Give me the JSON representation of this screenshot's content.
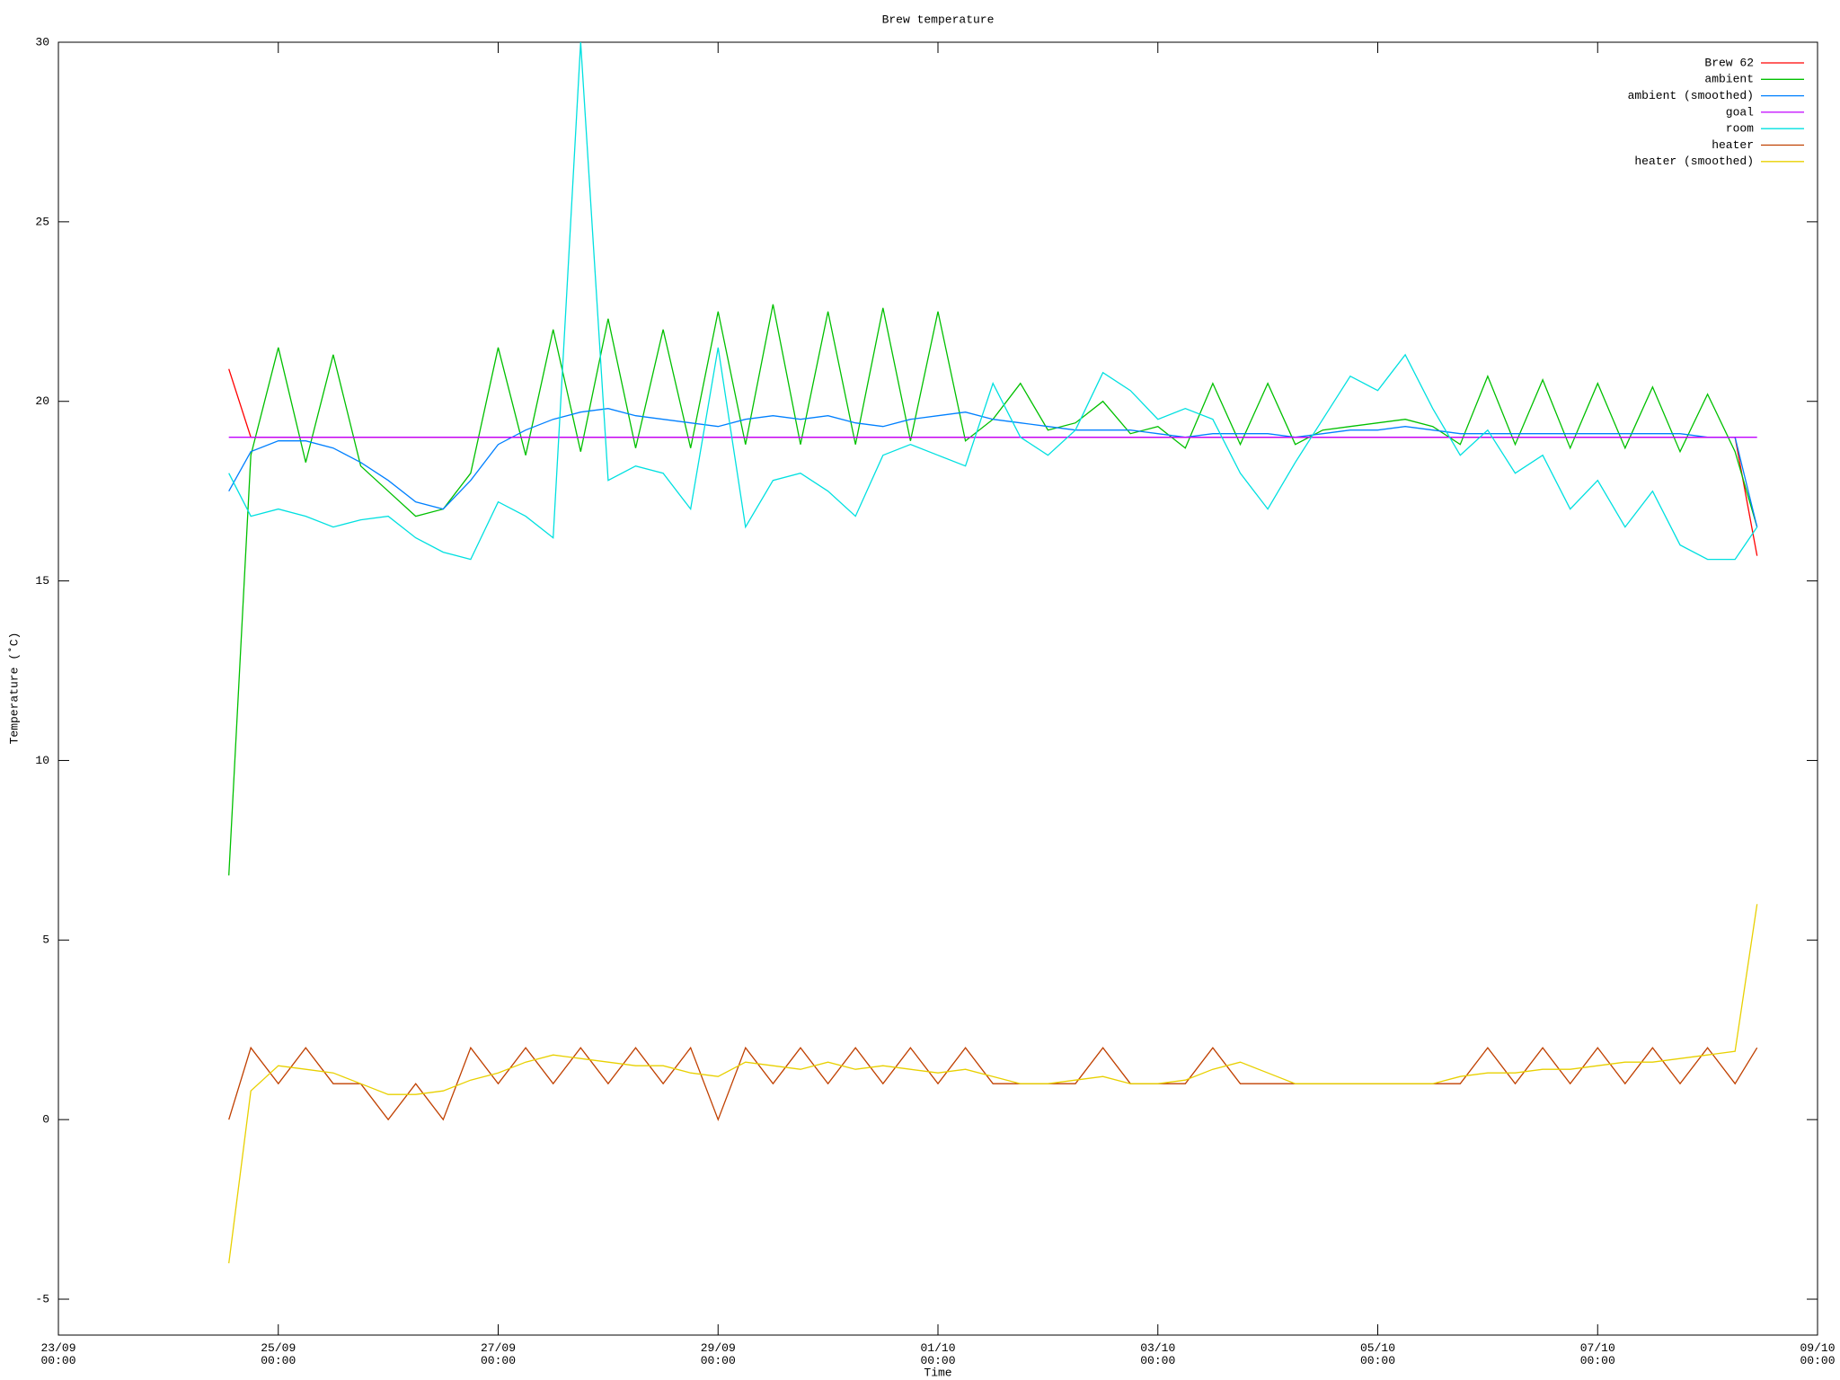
{
  "chart_data": {
    "type": "line",
    "title": "Brew temperature",
    "x_label": "Time",
    "y_label": "Temperature (˚C)",
    "x": [
      1.55,
      1.75,
      2.0,
      2.25,
      2.5,
      2.75,
      3.0,
      3.25,
      3.5,
      3.75,
      4.0,
      4.25,
      4.5,
      4.75,
      5.0,
      5.25,
      5.5,
      5.75,
      6.0,
      6.25,
      6.5,
      6.75,
      7.0,
      7.25,
      7.5,
      7.75,
      8.0,
      8.25,
      8.5,
      8.75,
      9.0,
      9.25,
      9.5,
      9.75,
      10.0,
      10.25,
      10.5,
      10.75,
      11.0,
      11.25,
      11.5,
      11.75,
      12.0,
      12.25,
      12.5,
      12.75,
      13.0,
      13.25,
      13.5,
      13.75,
      14.0,
      14.25,
      14.5,
      14.75,
      15.0,
      15.25,
      15.45
    ],
    "series": [
      {
        "name": "Brew 62",
        "color": "#ff0000",
        "values": [
          20.9,
          19,
          19,
          19,
          19,
          19,
          19,
          19,
          19,
          19,
          19,
          19,
          19,
          19,
          19,
          19,
          19,
          19,
          19,
          19,
          19,
          19,
          19,
          19,
          19,
          19,
          19,
          19,
          19,
          19,
          19,
          19,
          19,
          19,
          19,
          19,
          19,
          19,
          19,
          19,
          19,
          19,
          19,
          19,
          19,
          19,
          19,
          19,
          19,
          19,
          19,
          19,
          19,
          19,
          19,
          19,
          15.7
        ]
      },
      {
        "name": "ambient",
        "color": "#00c000",
        "values": [
          6.8,
          18.5,
          21.5,
          18.3,
          21.3,
          18.2,
          17.5,
          16.8,
          17.0,
          18.0,
          21.5,
          18.5,
          22.0,
          18.6,
          22.3,
          18.7,
          22.0,
          18.7,
          22.5,
          18.8,
          22.7,
          18.8,
          22.5,
          18.8,
          22.6,
          18.9,
          22.5,
          18.9,
          19.5,
          20.5,
          19.2,
          19.4,
          20.0,
          19.1,
          19.3,
          18.7,
          20.5,
          18.8,
          20.5,
          18.8,
          19.2,
          19.3,
          19.4,
          19.5,
          19.3,
          18.8,
          20.7,
          18.8,
          20.6,
          18.7,
          20.5,
          18.7,
          20.4,
          18.6,
          20.2,
          18.6,
          16.5
        ]
      },
      {
        "name": "ambient (smoothed)",
        "color": "#0080ff",
        "values": [
          17.5,
          18.6,
          18.9,
          18.9,
          18.7,
          18.3,
          17.8,
          17.2,
          17.0,
          17.8,
          18.8,
          19.2,
          19.5,
          19.7,
          19.8,
          19.6,
          19.5,
          19.4,
          19.3,
          19.5,
          19.6,
          19.5,
          19.6,
          19.4,
          19.3,
          19.5,
          19.6,
          19.7,
          19.5,
          19.4,
          19.3,
          19.2,
          19.2,
          19.2,
          19.1,
          19.0,
          19.1,
          19.1,
          19.1,
          19.0,
          19.1,
          19.2,
          19.2,
          19.3,
          19.2,
          19.1,
          19.1,
          19.1,
          19.1,
          19.1,
          19.1,
          19.1,
          19.1,
          19.1,
          19.0,
          19.0,
          16.5
        ]
      },
      {
        "name": "goal",
        "color": "#c000ff",
        "values": [
          19,
          19,
          19,
          19,
          19,
          19,
          19,
          19,
          19,
          19,
          19,
          19,
          19,
          19,
          19,
          19,
          19,
          19,
          19,
          19,
          19,
          19,
          19,
          19,
          19,
          19,
          19,
          19,
          19,
          19,
          19,
          19,
          19,
          19,
          19,
          19,
          19,
          19,
          19,
          19,
          19,
          19,
          19,
          19,
          19,
          19,
          19,
          19,
          19,
          19,
          19,
          19,
          19,
          19,
          19,
          19,
          19
        ]
      },
      {
        "name": "room",
        "color": "#00e0e0",
        "values": [
          18,
          16.8,
          17.0,
          16.8,
          16.5,
          16.7,
          16.8,
          16.2,
          15.8,
          15.6,
          17.2,
          16.8,
          16.2,
          30,
          17.8,
          18.2,
          18.0,
          17.0,
          21.5,
          16.5,
          17.8,
          18.0,
          17.5,
          16.8,
          18.5,
          18.8,
          18.5,
          18.2,
          20.5,
          19.0,
          18.5,
          19.2,
          20.8,
          20.3,
          19.5,
          19.8,
          19.5,
          18.0,
          17.0,
          18.3,
          19.5,
          20.7,
          20.3,
          21.3,
          19.8,
          18.5,
          19.2,
          18.0,
          18.5,
          17.0,
          17.8,
          16.5,
          17.5,
          16.0,
          15.6,
          15.6,
          16.5
        ]
      },
      {
        "name": "heater",
        "color": "#c04000",
        "values": [
          0,
          2,
          1,
          2,
          1,
          1,
          0,
          1,
          0,
          2,
          1,
          2,
          1,
          2,
          1,
          2,
          1,
          2,
          0,
          2,
          1,
          2,
          1,
          2,
          1,
          2,
          1,
          2,
          1,
          1,
          1,
          1,
          2,
          1,
          1,
          1,
          2,
          1,
          1,
          1,
          1,
          1,
          1,
          1,
          1,
          1,
          2,
          1,
          2,
          1,
          2,
          1,
          2,
          1,
          2,
          1,
          2
        ]
      },
      {
        "name": "heater (smoothed)",
        "color": "#e8d000",
        "values": [
          -4,
          0.8,
          1.5,
          1.4,
          1.3,
          1.0,
          0.7,
          0.7,
          0.8,
          1.1,
          1.3,
          1.6,
          1.8,
          1.7,
          1.6,
          1.5,
          1.5,
          1.3,
          1.2,
          1.6,
          1.5,
          1.4,
          1.6,
          1.4,
          1.5,
          1.4,
          1.3,
          1.4,
          1.2,
          1.0,
          1.0,
          1.1,
          1.2,
          1.0,
          1.0,
          1.1,
          1.4,
          1.6,
          1.3,
          1.0,
          1.0,
          1.0,
          1.0,
          1.0,
          1.0,
          1.2,
          1.3,
          1.3,
          1.4,
          1.4,
          1.5,
          1.6,
          1.6,
          1.7,
          1.8,
          1.9,
          6.0
        ]
      }
    ],
    "xlim": [
      0,
      16
    ],
    "xticks": [
      {
        "value": 0,
        "label": "23/09\n00:00"
      },
      {
        "value": 2,
        "label": "25/09\n00:00"
      },
      {
        "value": 4,
        "label": "27/09\n00:00"
      },
      {
        "value": 6,
        "label": "29/09\n00:00"
      },
      {
        "value": 8,
        "label": "01/10\n00:00"
      },
      {
        "value": 10,
        "label": "03/10\n00:00"
      },
      {
        "value": 12,
        "label": "05/10\n00:00"
      },
      {
        "value": 14,
        "label": "07/10\n00:00"
      },
      {
        "value": 16,
        "label": "09/10\n00:00"
      }
    ],
    "ylim": [
      -6,
      30
    ],
    "yticks": [
      -5,
      0,
      5,
      10,
      15,
      20,
      25,
      30
    ],
    "legend": "top-right"
  }
}
